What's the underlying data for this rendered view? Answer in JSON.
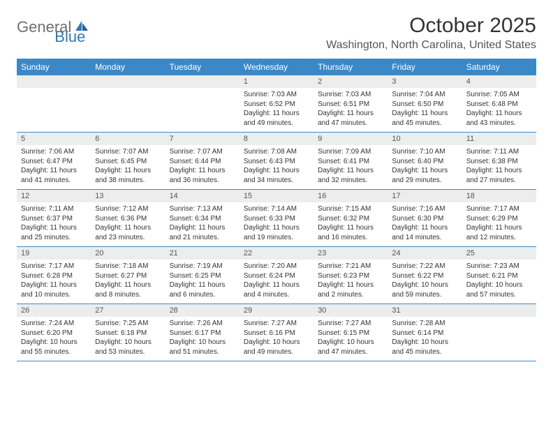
{
  "brand": {
    "name1": "General",
    "name2": "Blue"
  },
  "title": "October 2025",
  "location": "Washington, North Carolina, United States",
  "colors": {
    "header_bg": "#3b88c9",
    "header_text": "#ffffff",
    "daynum_bg": "#eceded",
    "text": "#333333",
    "brand_gray": "#6f6f6f",
    "brand_blue": "#2f77bc"
  },
  "day_headers": [
    "Sunday",
    "Monday",
    "Tuesday",
    "Wednesday",
    "Thursday",
    "Friday",
    "Saturday"
  ],
  "weeks": [
    [
      null,
      null,
      null,
      {
        "n": "1",
        "sr": "7:03 AM",
        "ss": "6:52 PM",
        "dl": "11 hours and 49 minutes."
      },
      {
        "n": "2",
        "sr": "7:03 AM",
        "ss": "6:51 PM",
        "dl": "11 hours and 47 minutes."
      },
      {
        "n": "3",
        "sr": "7:04 AM",
        "ss": "6:50 PM",
        "dl": "11 hours and 45 minutes."
      },
      {
        "n": "4",
        "sr": "7:05 AM",
        "ss": "6:48 PM",
        "dl": "11 hours and 43 minutes."
      }
    ],
    [
      {
        "n": "5",
        "sr": "7:06 AM",
        "ss": "6:47 PM",
        "dl": "11 hours and 41 minutes."
      },
      {
        "n": "6",
        "sr": "7:07 AM",
        "ss": "6:45 PM",
        "dl": "11 hours and 38 minutes."
      },
      {
        "n": "7",
        "sr": "7:07 AM",
        "ss": "6:44 PM",
        "dl": "11 hours and 36 minutes."
      },
      {
        "n": "8",
        "sr": "7:08 AM",
        "ss": "6:43 PM",
        "dl": "11 hours and 34 minutes."
      },
      {
        "n": "9",
        "sr": "7:09 AM",
        "ss": "6:41 PM",
        "dl": "11 hours and 32 minutes."
      },
      {
        "n": "10",
        "sr": "7:10 AM",
        "ss": "6:40 PM",
        "dl": "11 hours and 29 minutes."
      },
      {
        "n": "11",
        "sr": "7:11 AM",
        "ss": "6:38 PM",
        "dl": "11 hours and 27 minutes."
      }
    ],
    [
      {
        "n": "12",
        "sr": "7:11 AM",
        "ss": "6:37 PM",
        "dl": "11 hours and 25 minutes."
      },
      {
        "n": "13",
        "sr": "7:12 AM",
        "ss": "6:36 PM",
        "dl": "11 hours and 23 minutes."
      },
      {
        "n": "14",
        "sr": "7:13 AM",
        "ss": "6:34 PM",
        "dl": "11 hours and 21 minutes."
      },
      {
        "n": "15",
        "sr": "7:14 AM",
        "ss": "6:33 PM",
        "dl": "11 hours and 19 minutes."
      },
      {
        "n": "16",
        "sr": "7:15 AM",
        "ss": "6:32 PM",
        "dl": "11 hours and 16 minutes."
      },
      {
        "n": "17",
        "sr": "7:16 AM",
        "ss": "6:30 PM",
        "dl": "11 hours and 14 minutes."
      },
      {
        "n": "18",
        "sr": "7:17 AM",
        "ss": "6:29 PM",
        "dl": "11 hours and 12 minutes."
      }
    ],
    [
      {
        "n": "19",
        "sr": "7:17 AM",
        "ss": "6:28 PM",
        "dl": "11 hours and 10 minutes."
      },
      {
        "n": "20",
        "sr": "7:18 AM",
        "ss": "6:27 PM",
        "dl": "11 hours and 8 minutes."
      },
      {
        "n": "21",
        "sr": "7:19 AM",
        "ss": "6:25 PM",
        "dl": "11 hours and 6 minutes."
      },
      {
        "n": "22",
        "sr": "7:20 AM",
        "ss": "6:24 PM",
        "dl": "11 hours and 4 minutes."
      },
      {
        "n": "23",
        "sr": "7:21 AM",
        "ss": "6:23 PM",
        "dl": "11 hours and 2 minutes."
      },
      {
        "n": "24",
        "sr": "7:22 AM",
        "ss": "6:22 PM",
        "dl": "10 hours and 59 minutes."
      },
      {
        "n": "25",
        "sr": "7:23 AM",
        "ss": "6:21 PM",
        "dl": "10 hours and 57 minutes."
      }
    ],
    [
      {
        "n": "26",
        "sr": "7:24 AM",
        "ss": "6:20 PM",
        "dl": "10 hours and 55 minutes."
      },
      {
        "n": "27",
        "sr": "7:25 AM",
        "ss": "6:18 PM",
        "dl": "10 hours and 53 minutes."
      },
      {
        "n": "28",
        "sr": "7:26 AM",
        "ss": "6:17 PM",
        "dl": "10 hours and 51 minutes."
      },
      {
        "n": "29",
        "sr": "7:27 AM",
        "ss": "6:16 PM",
        "dl": "10 hours and 49 minutes."
      },
      {
        "n": "30",
        "sr": "7:27 AM",
        "ss": "6:15 PM",
        "dl": "10 hours and 47 minutes."
      },
      {
        "n": "31",
        "sr": "7:28 AM",
        "ss": "6:14 PM",
        "dl": "10 hours and 45 minutes."
      },
      null
    ]
  ],
  "labels": {
    "sunrise": "Sunrise:",
    "sunset": "Sunset:",
    "daylight": "Daylight:"
  }
}
